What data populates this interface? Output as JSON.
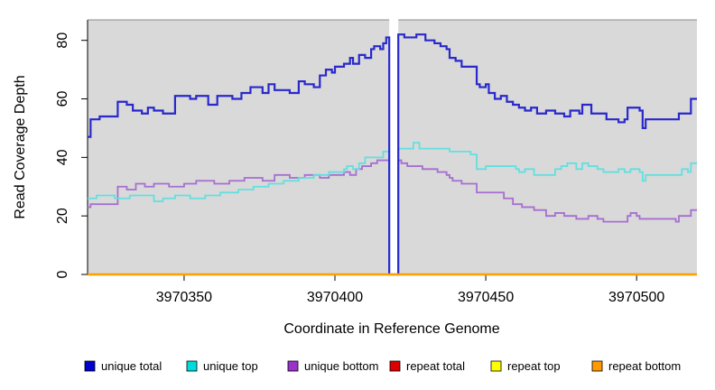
{
  "figure": {
    "plot_background": "#d9d9d9",
    "page_background": "#ffffff",
    "top_border_color": "#8c8c8c",
    "axis_color": "#000000",
    "text_color": "#000000"
  },
  "chart_data": {
    "type": "line",
    "subtype": "step-coverage-plot",
    "title": "",
    "xlabel": "Coordinate in Reference Genome",
    "ylabel": "Read Coverage Depth",
    "xlim": [
      3970318,
      3970520
    ],
    "ylim": [
      0,
      87
    ],
    "x_ticks": [
      3970350,
      3970400,
      3970450,
      3970500
    ],
    "y_ticks": [
      0,
      20,
      40,
      60,
      80
    ],
    "grid": false,
    "legend_position": "bottom",
    "gap_region": {
      "x_start": 3970418,
      "x_end": 3970421,
      "color": "#ffffff"
    },
    "series": [
      {
        "name": "unique bottom",
        "color": "#a66fd0",
        "legend_color": "#9933cc",
        "width": 1.8,
        "points": [
          [
            3970318,
            23
          ],
          [
            3970319,
            24
          ],
          [
            3970328,
            30
          ],
          [
            3970331,
            29
          ],
          [
            3970334,
            31
          ],
          [
            3970337,
            30
          ],
          [
            3970340,
            31
          ],
          [
            3970345,
            30
          ],
          [
            3970350,
            31
          ],
          [
            3970354,
            32
          ],
          [
            3970360,
            31
          ],
          [
            3970365,
            32
          ],
          [
            3970370,
            33
          ],
          [
            3970376,
            32
          ],
          [
            3970380,
            34
          ],
          [
            3970385,
            33
          ],
          [
            3970390,
            34
          ],
          [
            3970395,
            33
          ],
          [
            3970398,
            34
          ],
          [
            3970403,
            35
          ],
          [
            3970405,
            34
          ],
          [
            3970407,
            36
          ],
          [
            3970409,
            37
          ],
          [
            3970412,
            38
          ],
          [
            3970414,
            39
          ],
          [
            3970418,
            0
          ],
          [
            3970421,
            39
          ],
          [
            3970422,
            38
          ],
          [
            3970424,
            37
          ],
          [
            3970429,
            36
          ],
          [
            3970434,
            35
          ],
          [
            3970437,
            34
          ],
          [
            3970438,
            33
          ],
          [
            3970439,
            32
          ],
          [
            3970442,
            31
          ],
          [
            3970447,
            28
          ],
          [
            3970456,
            26
          ],
          [
            3970459,
            24
          ],
          [
            3970462,
            23
          ],
          [
            3970466,
            22
          ],
          [
            3970470,
            20
          ],
          [
            3970473,
            21
          ],
          [
            3970476,
            20
          ],
          [
            3970480,
            19
          ],
          [
            3970484,
            20
          ],
          [
            3970487,
            19
          ],
          [
            3970489,
            18
          ],
          [
            3970497,
            20
          ],
          [
            3970498,
            21
          ],
          [
            3970500,
            20
          ],
          [
            3970501,
            19
          ],
          [
            3970513,
            18
          ],
          [
            3970514,
            20
          ],
          [
            3970518,
            22
          ]
        ]
      },
      {
        "name": "unique top",
        "color": "#63dfdf",
        "legend_color": "#00dcdc",
        "width": 1.8,
        "points": [
          [
            3970318,
            26
          ],
          [
            3970321,
            27
          ],
          [
            3970327,
            26
          ],
          [
            3970332,
            27
          ],
          [
            3970340,
            25
          ],
          [
            3970343,
            26
          ],
          [
            3970347,
            27
          ],
          [
            3970352,
            26
          ],
          [
            3970357,
            27
          ],
          [
            3970362,
            28
          ],
          [
            3970368,
            29
          ],
          [
            3970373,
            30
          ],
          [
            3970378,
            31
          ],
          [
            3970383,
            32
          ],
          [
            3970388,
            33
          ],
          [
            3970393,
            34
          ],
          [
            3970398,
            35
          ],
          [
            3970403,
            36
          ],
          [
            3970404,
            37
          ],
          [
            3970406,
            36
          ],
          [
            3970408,
            38
          ],
          [
            3970410,
            40
          ],
          [
            3970416,
            42
          ],
          [
            3970418,
            0
          ],
          [
            3970421,
            43
          ],
          [
            3970426,
            45
          ],
          [
            3970428,
            43
          ],
          [
            3970438,
            42
          ],
          [
            3970445,
            41
          ],
          [
            3970447,
            36
          ],
          [
            3970450,
            37
          ],
          [
            3970460,
            36
          ],
          [
            3970461,
            35
          ],
          [
            3970463,
            36
          ],
          [
            3970466,
            34
          ],
          [
            3970473,
            36
          ],
          [
            3970475,
            37
          ],
          [
            3970477,
            38
          ],
          [
            3970480,
            36
          ],
          [
            3970482,
            38
          ],
          [
            3970484,
            37
          ],
          [
            3970487,
            36
          ],
          [
            3970489,
            35
          ],
          [
            3970494,
            36
          ],
          [
            3970496,
            35
          ],
          [
            3970498,
            36
          ],
          [
            3970501,
            35
          ],
          [
            3970502,
            32
          ],
          [
            3970503,
            34
          ],
          [
            3970515,
            36
          ],
          [
            3970517,
            35
          ],
          [
            3970518,
            38
          ]
        ]
      },
      {
        "name": "unique total",
        "color": "#2929cc",
        "legend_color": "#0000cc",
        "width": 2.2,
        "points": [
          [
            3970318,
            47
          ],
          [
            3970319,
            53
          ],
          [
            3970322,
            54
          ],
          [
            3970328,
            59
          ],
          [
            3970331,
            58
          ],
          [
            3970333,
            56
          ],
          [
            3970336,
            55
          ],
          [
            3970338,
            57
          ],
          [
            3970340,
            56
          ],
          [
            3970343,
            55
          ],
          [
            3970347,
            61
          ],
          [
            3970352,
            60
          ],
          [
            3970354,
            61
          ],
          [
            3970358,
            58
          ],
          [
            3970361,
            61
          ],
          [
            3970366,
            60
          ],
          [
            3970369,
            62
          ],
          [
            3970372,
            64
          ],
          [
            3970376,
            62
          ],
          [
            3970378,
            65
          ],
          [
            3970380,
            63
          ],
          [
            3970385,
            62
          ],
          [
            3970388,
            66
          ],
          [
            3970390,
            65
          ],
          [
            3970393,
            64
          ],
          [
            3970395,
            68
          ],
          [
            3970397,
            70
          ],
          [
            3970399,
            69
          ],
          [
            3970400,
            71
          ],
          [
            3970403,
            72
          ],
          [
            3970405,
            74
          ],
          [
            3970406,
            72
          ],
          [
            3970408,
            75
          ],
          [
            3970410,
            74
          ],
          [
            3970412,
            77
          ],
          [
            3970413,
            78
          ],
          [
            3970415,
            77
          ],
          [
            3970416,
            79
          ],
          [
            3970417,
            81
          ],
          [
            3970418,
            0
          ],
          [
            3970421,
            82
          ],
          [
            3970423,
            81
          ],
          [
            3970427,
            82
          ],
          [
            3970430,
            80
          ],
          [
            3970433,
            79
          ],
          [
            3970435,
            78
          ],
          [
            3970437,
            77
          ],
          [
            3970438,
            74
          ],
          [
            3970440,
            73
          ],
          [
            3970442,
            71
          ],
          [
            3970447,
            65
          ],
          [
            3970448,
            64
          ],
          [
            3970450,
            65
          ],
          [
            3970451,
            62
          ],
          [
            3970453,
            60
          ],
          [
            3970455,
            61
          ],
          [
            3970457,
            59
          ],
          [
            3970459,
            58
          ],
          [
            3970461,
            57
          ],
          [
            3970463,
            56
          ],
          [
            3970465,
            57
          ],
          [
            3970467,
            55
          ],
          [
            3970470,
            56
          ],
          [
            3970473,
            55
          ],
          [
            3970476,
            54
          ],
          [
            3970478,
            56
          ],
          [
            3970481,
            55
          ],
          [
            3970482,
            58
          ],
          [
            3970485,
            55
          ],
          [
            3970490,
            53
          ],
          [
            3970494,
            52
          ],
          [
            3970496,
            53
          ],
          [
            3970497,
            57
          ],
          [
            3970501,
            56
          ],
          [
            3970502,
            50
          ],
          [
            3970503,
            53
          ],
          [
            3970514,
            55
          ],
          [
            3970518,
            60
          ]
        ]
      },
      {
        "name": "repeat total",
        "color": "#d40000",
        "legend_color": "#dd0000",
        "width": 2,
        "points": [
          [
            3970318,
            0
          ]
        ]
      },
      {
        "name": "repeat top",
        "color": "#f0e400",
        "legend_color": "#ffff00",
        "width": 2,
        "points": [
          [
            3970318,
            0
          ]
        ]
      },
      {
        "name": "repeat bottom",
        "color": "#ff9f00",
        "legend_color": "#ff9900",
        "width": 2.5,
        "points": [
          [
            3970318,
            0
          ]
        ]
      }
    ],
    "legend": [
      {
        "label": "unique total",
        "color": "#0000cc"
      },
      {
        "label": "unique top",
        "color": "#00dcdc"
      },
      {
        "label": "unique bottom",
        "color": "#9933cc"
      },
      {
        "label": "repeat total",
        "color": "#dd0000"
      },
      {
        "label": "repeat top",
        "color": "#ffff00"
      },
      {
        "label": "repeat bottom",
        "color": "#ff9900"
      }
    ]
  }
}
